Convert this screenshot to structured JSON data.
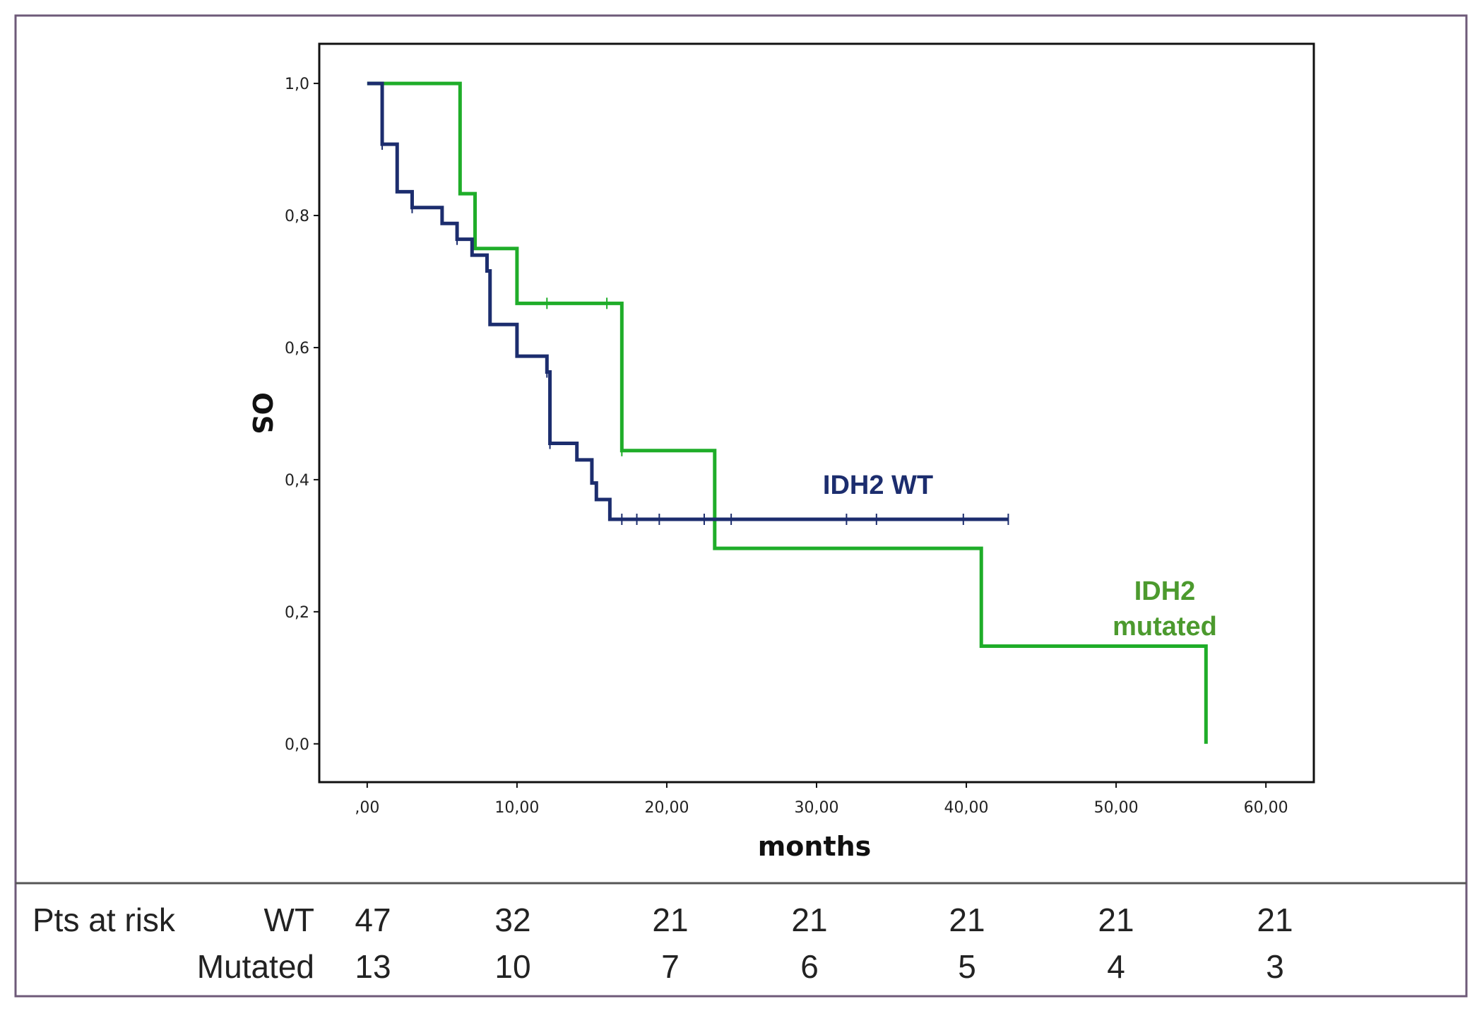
{
  "chart_data": {
    "type": "line",
    "title": "",
    "xlabel": "months",
    "ylabel": "OS",
    "xlim": [
      -3.2,
      63.2
    ],
    "ylim": [
      -0.058,
      1.06
    ],
    "x_ticks": [
      0,
      10,
      20,
      30,
      40,
      50,
      60
    ],
    "x_tick_labels": [
      ",00",
      "10,00",
      "20,00",
      "30,00",
      "40,00",
      "50,00",
      "60,00"
    ],
    "y_ticks": [
      0,
      0.2,
      0.4,
      0.6,
      0.8,
      1.0
    ],
    "y_tick_labels": [
      "0,0",
      "0,2",
      "0,4",
      "0,6",
      "0,8",
      "1,0"
    ],
    "grid": false,
    "series": [
      {
        "name": "IDH2 WT",
        "label_lines": [
          "IDH2 WT"
        ],
        "color": "#1c2d6e",
        "steps": [
          [
            0,
            1.0
          ],
          [
            1.0,
            0.908
          ],
          [
            2.0,
            0.836
          ],
          [
            3.0,
            0.812
          ],
          [
            5.0,
            0.788
          ],
          [
            6.0,
            0.764
          ],
          [
            7.0,
            0.74
          ],
          [
            8.0,
            0.716
          ],
          [
            8.2,
            0.635
          ],
          [
            10.0,
            0.587
          ],
          [
            12.0,
            0.563
          ],
          [
            12.2,
            0.455
          ],
          [
            14.0,
            0.43
          ],
          [
            15.0,
            0.395
          ],
          [
            15.3,
            0.37
          ],
          [
            16.2,
            0.34
          ],
          [
            42.8,
            0.34
          ]
        ],
        "censor": [
          [
            1.0,
            0.908
          ],
          [
            3.0,
            0.812
          ],
          [
            6.0,
            0.764
          ],
          [
            12.0,
            0.563
          ],
          [
            12.2,
            0.455
          ],
          [
            17.0,
            0.34
          ],
          [
            18.0,
            0.34
          ],
          [
            19.5,
            0.34
          ],
          [
            22.5,
            0.34
          ],
          [
            24.3,
            0.34
          ],
          [
            32.0,
            0.34
          ],
          [
            34.0,
            0.34
          ],
          [
            39.8,
            0.34
          ],
          [
            42.8,
            0.34
          ]
        ]
      },
      {
        "name": "IDH2 mutated",
        "label_lines": [
          "IDH2",
          "mutated"
        ],
        "color": "#1fad29",
        "label_color": "#4c9a2e",
        "steps": [
          [
            0,
            1.0
          ],
          [
            6.2,
            0.833
          ],
          [
            7.2,
            0.75
          ],
          [
            10.0,
            0.667
          ],
          [
            17.0,
            0.444
          ],
          [
            23.2,
            0.296
          ],
          [
            41.0,
            0.148
          ],
          [
            56.0,
            0.0
          ]
        ],
        "censor": [
          [
            12.0,
            0.667
          ],
          [
            16.0,
            0.667
          ],
          [
            17.0,
            0.444
          ]
        ]
      }
    ]
  },
  "risk_table": {
    "label": "Pts at risk",
    "rows": [
      {
        "name": "WT",
        "values": [
          "47",
          "32",
          "21",
          "21",
          "21",
          "21",
          "21"
        ]
      },
      {
        "name": "Mutated",
        "values": [
          "13",
          "10",
          "7",
          "6",
          "5",
          "4",
          "3"
        ]
      }
    ]
  }
}
